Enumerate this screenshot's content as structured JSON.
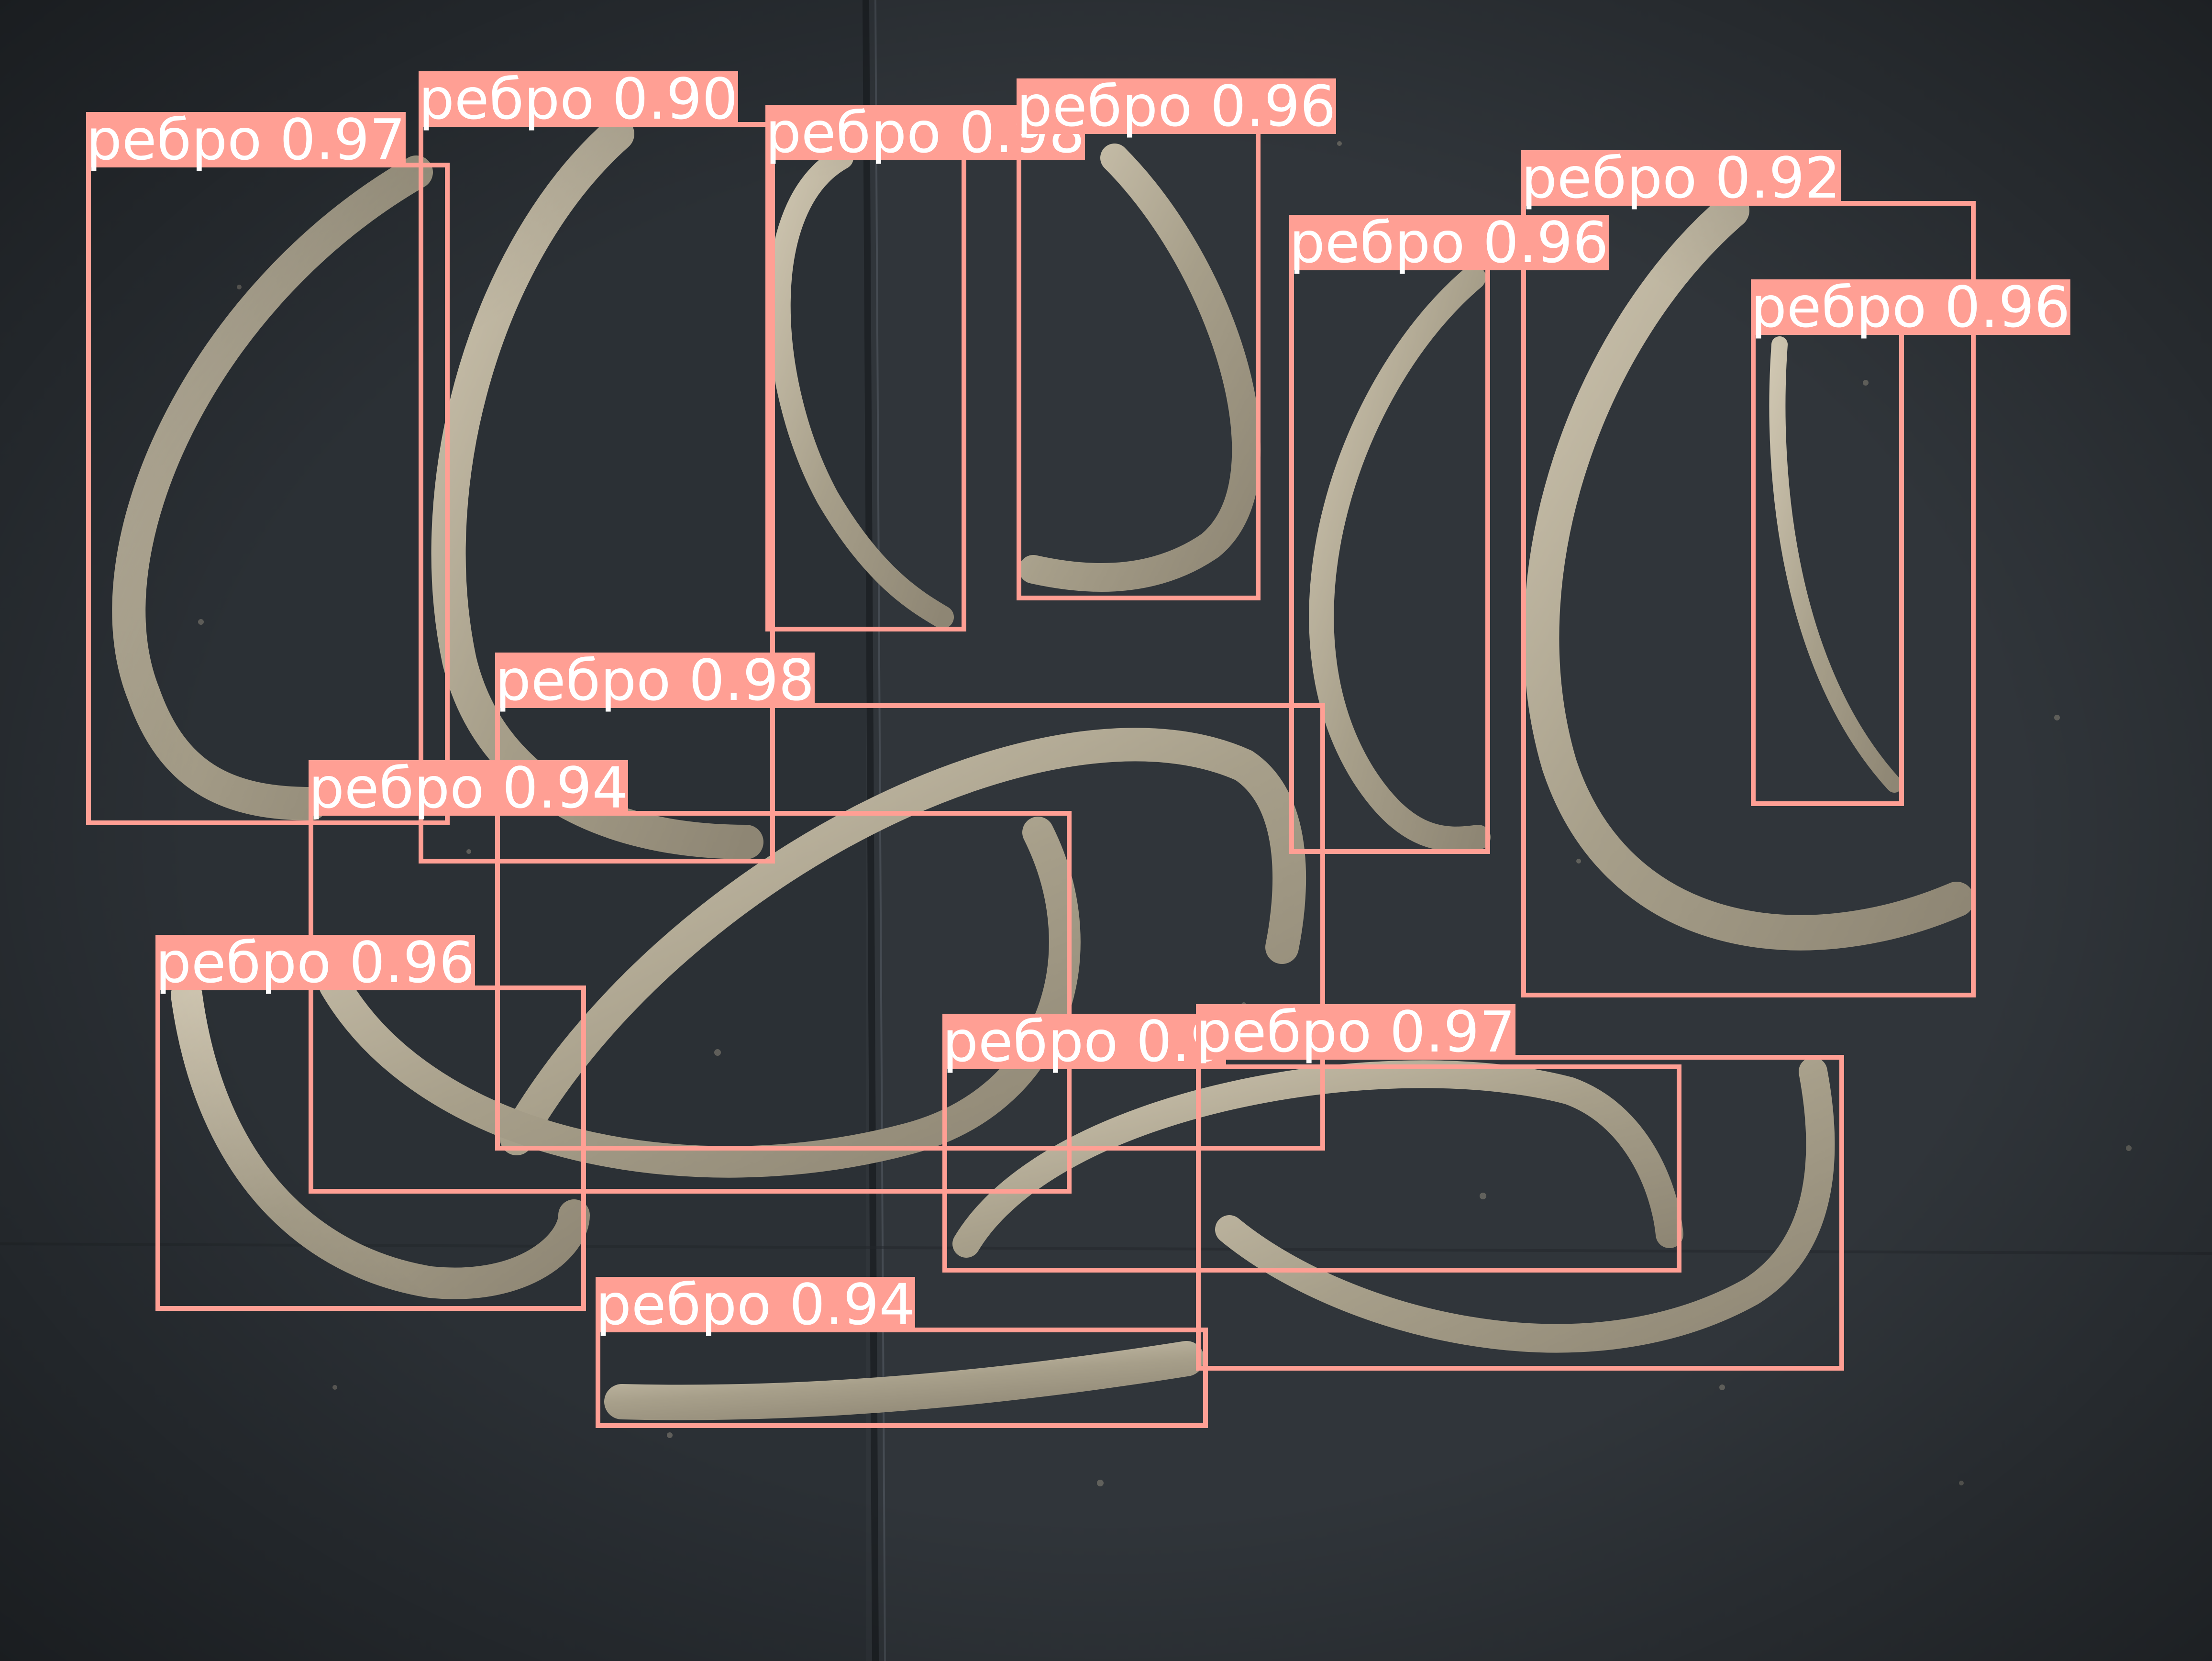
{
  "detection": {
    "box_color": "#ff9f94",
    "label_text_color": "#ffffff",
    "detections": [
      {
        "label": "ребро 0.97"
      },
      {
        "label": "ребро 0.90"
      },
      {
        "label": "ребро 0.98"
      },
      {
        "label": "ребро 0.96"
      },
      {
        "label": "ребро 0.92"
      },
      {
        "label": "ребро 0.96"
      },
      {
        "label": "ребро 0.96"
      },
      {
        "label": "ребро 0.98"
      },
      {
        "label": "ребро 0.94"
      },
      {
        "label": "ребро 0.96"
      },
      {
        "label": "ребро 0.9"
      },
      {
        "label": "ребро 0.97"
      },
      {
        "label": "ребро 0.94"
      }
    ]
  }
}
